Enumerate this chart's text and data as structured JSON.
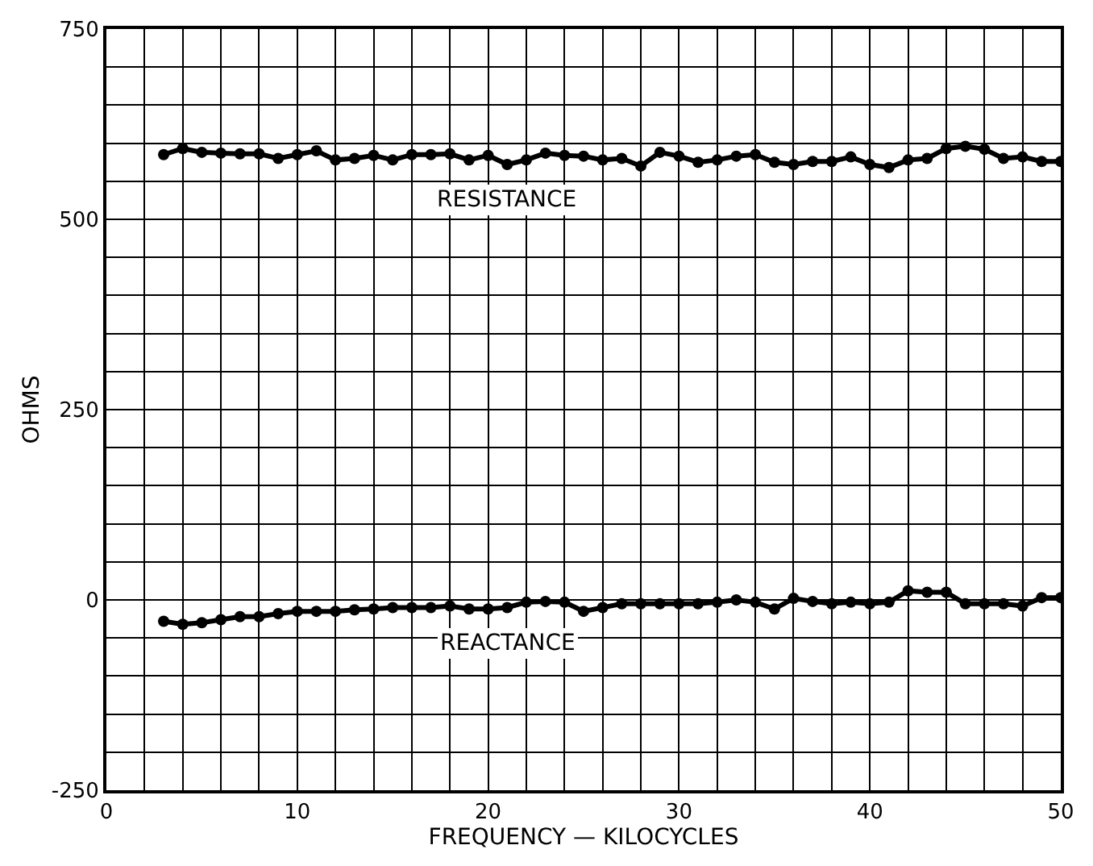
{
  "chart_data": {
    "type": "line",
    "xlabel": "FREQUENCY — KILOCYCLES",
    "ylabel": "OHMS",
    "x": [
      3,
      4,
      5,
      6,
      7,
      8,
      9,
      10,
      11,
      12,
      13,
      14,
      15,
      16,
      17,
      18,
      19,
      20,
      21,
      22,
      23,
      24,
      25,
      26,
      27,
      28,
      29,
      30,
      31,
      32,
      33,
      34,
      35,
      36,
      37,
      38,
      39,
      40,
      41,
      42,
      43,
      44,
      45,
      46,
      47,
      48,
      49,
      50
    ],
    "series": [
      {
        "name": "RESISTANCE",
        "color": "#000000",
        "values": [
          585,
          593,
          588,
          587,
          586,
          586,
          580,
          585,
          590,
          578,
          580,
          584,
          578,
          585,
          585,
          586,
          578,
          584,
          572,
          578,
          587,
          584,
          583,
          578,
          580,
          570,
          588,
          583,
          575,
          578,
          583,
          585,
          575,
          572,
          576,
          576,
          582,
          572,
          568,
          578,
          580,
          593,
          596,
          592,
          580,
          582,
          576,
          576
        ]
      },
      {
        "name": "REACTANCE",
        "color": "#000000",
        "values": [
          -28,
          -32,
          -30,
          -26,
          -22,
          -22,
          -18,
          -15,
          -15,
          -15,
          -13,
          -12,
          -10,
          -10,
          -10,
          -8,
          -12,
          -12,
          -10,
          -3,
          -2,
          -3,
          -15,
          -10,
          -5,
          -5,
          -5,
          -5,
          -5,
          -3,
          0,
          -3,
          -12,
          2,
          -2,
          -5,
          -3,
          -5,
          -3,
          12,
          10,
          10,
          -5,
          -5,
          -5,
          -8,
          3,
          3
        ]
      }
    ],
    "xlim": [
      0,
      50
    ],
    "ylim": [
      -250,
      750
    ],
    "xticks": [
      0,
      {
        "value": 2,
        "label": null
      },
      {
        "value": 4,
        "label": null
      },
      {
        "value": 6,
        "label": null
      },
      {
        "value": 8,
        "label": null
      },
      10,
      {
        "value": 12,
        "label": null
      },
      {
        "value": 14,
        "label": null
      },
      {
        "value": 16,
        "label": null
      },
      {
        "value": 18,
        "label": null
      },
      20,
      {
        "value": 22,
        "label": null
      },
      {
        "value": 24,
        "label": null
      },
      {
        "value": 26,
        "label": null
      },
      {
        "value": 28,
        "label": null
      },
      30,
      {
        "value": 32,
        "label": null
      },
      {
        "value": 34,
        "label": null
      },
      {
        "value": 36,
        "label": null
      },
      {
        "value": 38,
        "label": null
      },
      40,
      {
        "value": 42,
        "label": null
      },
      {
        "value": 44,
        "label": null
      },
      {
        "value": 46,
        "label": null
      },
      {
        "value": 48,
        "label": null
      },
      50
    ],
    "yticks": [
      -250,
      {
        "value": -200,
        "label": null
      },
      {
        "value": -150,
        "label": null
      },
      {
        "value": -100,
        "label": null
      },
      {
        "value": -50,
        "label": null
      },
      0,
      {
        "value": 50,
        "label": null
      },
      {
        "value": 100,
        "label": null
      },
      {
        "value": 150,
        "label": null
      },
      {
        "value": 200,
        "label": null
      },
      250,
      {
        "value": 300,
        "label": null
      },
      {
        "value": 350,
        "label": null
      },
      {
        "value": 400,
        "label": null
      },
      {
        "value": 450,
        "label": null
      },
      500,
      {
        "value": 550,
        "label": null
      },
      {
        "value": 600,
        "label": null
      },
      {
        "value": 650,
        "label": null
      },
      {
        "value": 700,
        "label": null
      },
      750
    ],
    "grid": true,
    "legend": false,
    "marker": "circle",
    "line_style": "solid"
  }
}
